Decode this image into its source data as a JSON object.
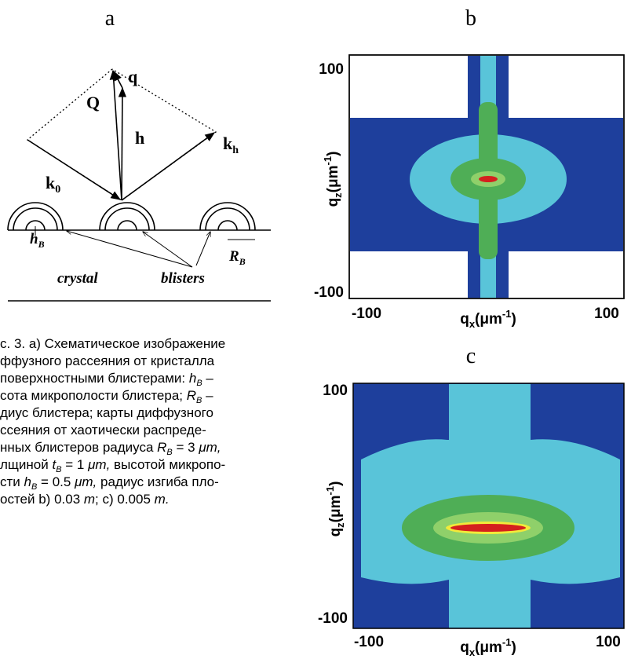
{
  "panel_labels": [
    "a",
    "b",
    "c"
  ],
  "diagram": {
    "Q": "Q",
    "q": "q",
    "h": "h",
    "k0": [
      "k",
      "0"
    ],
    "kh": [
      "k",
      "h"
    ],
    "hB": [
      "h",
      "B"
    ],
    "RB": [
      "R",
      "B"
    ],
    "crystal": "crystal",
    "blisters": "blisters"
  },
  "maps": [
    {
      "y_label": [
        "q",
        "z",
        "(μm",
        "-1",
        ")"
      ],
      "x_label": [
        "q",
        "x",
        "(μm",
        "-1",
        ")"
      ],
      "y_ticks": [
        100,
        -100
      ],
      "x_ticks": [
        -100,
        100
      ]
    },
    {
      "y_label": [
        "q",
        "z",
        "(μm",
        "-1",
        ")"
      ],
      "x_label": [
        "q",
        "x",
        "(μm",
        "-1",
        ")"
      ],
      "y_ticks": [
        100,
        -100
      ],
      "x_ticks": [
        -100,
        100
      ]
    }
  ],
  "caption": {
    "lines": [
      [
        "с. 3. а) Схематическое изображение"
      ],
      [
        "ффузного рассеяния от кристалла"
      ],
      [
        "поверхностными блистерами: ",
        "h",
        "B",
        " –"
      ],
      [
        "сота микрополости блистера; ",
        "R",
        "B",
        " –"
      ],
      [
        "диус блистера; карты диффузного"
      ],
      [
        "ссеяния от хаотически распреде-"
      ],
      [
        "нных блистеров радиуса ",
        "R",
        "B",
        " = 3 ",
        "μm,"
      ],
      [
        "лщиной ",
        "t",
        "B",
        " = 1 ",
        "μm,",
        " высотой микропо-"
      ],
      [
        "сти ",
        "h",
        "B",
        " = 0.5 ",
        "μm,",
        " радиус изгиба пло-"
      ],
      [
        "остей b) 0.03 ",
        "m",
        "; c) 0.005 ",
        "m."
      ]
    ]
  }
}
